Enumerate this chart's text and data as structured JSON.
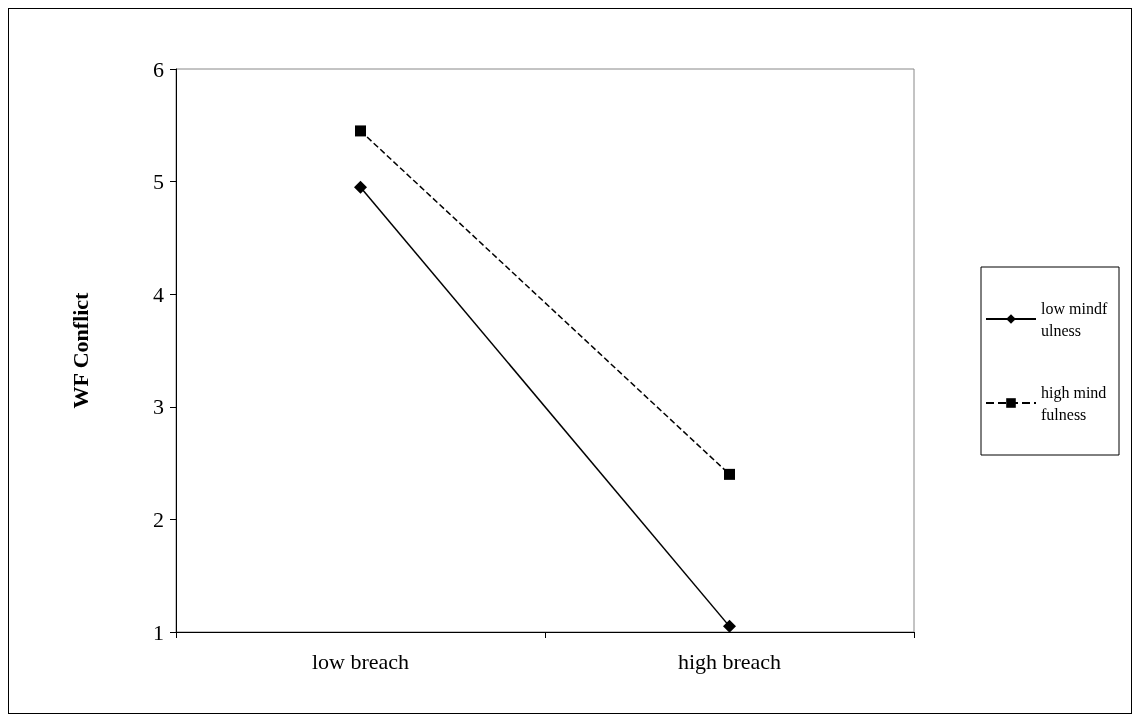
{
  "chart_data": {
    "type": "line",
    "ylabel": "WF Conflict",
    "categories": [
      "low breach",
      "high breach"
    ],
    "series": [
      {
        "name": "low mindfulness",
        "color": "#000000",
        "values": [
          4.95,
          1.05
        ],
        "marker": "diamond",
        "line_style": "solid"
      },
      {
        "name": "high mindfulness",
        "color": "#000000",
        "values": [
          5.45,
          2.4
        ],
        "marker": "square",
        "line_style": "dashed"
      }
    ],
    "ylim": [
      1,
      6
    ],
    "yticks": [
      1,
      2,
      3,
      4,
      5,
      6
    ],
    "grid": false,
    "legend": "right"
  }
}
